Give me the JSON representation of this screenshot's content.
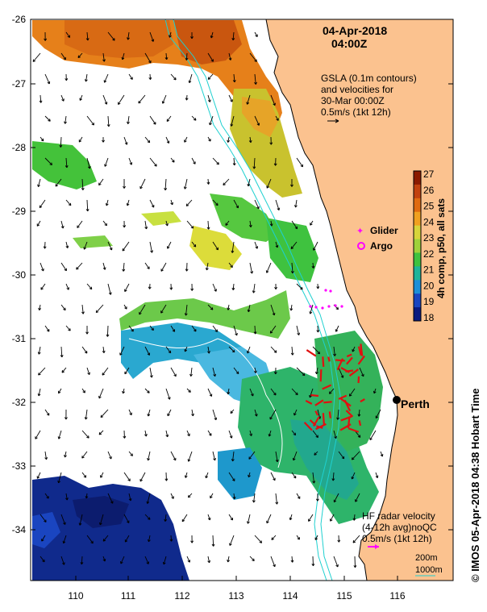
{
  "header": {
    "date": "04-Apr-2018",
    "time": "04:00Z"
  },
  "gsla": {
    "line1": "GSLA (0.1m contours)",
    "line2": "and velocities for",
    "line3": "30-Mar 00:00Z",
    "line4": "0.5m/s (1kt 12h)"
  },
  "legend": {
    "glider": "Glider",
    "argo": "Argo"
  },
  "colorbar": {
    "label": "4h comp, p50, all sats",
    "ticks": [
      "27",
      "26",
      "25",
      "24",
      "23",
      "22",
      "21",
      "20",
      "19",
      "18"
    ],
    "colors": [
      "#8b1a00",
      "#c2410e",
      "#e06a10",
      "#f0a020",
      "#d7d43a",
      "#9fd13a",
      "#3fc23f",
      "#20b49a",
      "#1d8fd8",
      "#1a45c0",
      "#0b1a80"
    ]
  },
  "place": {
    "perth": "Perth"
  },
  "hf": {
    "line1": "HF radar velocity",
    "line2": "(4-12h avg)noQC",
    "line3": "0.5m/s (1kt 12h)"
  },
  "depth": {
    "d200": "200m",
    "d1000": "1000m"
  },
  "credit": "© IMOS 05-Apr-2018 04:38 Hobart Time",
  "axes": {
    "lat_labels": [
      "-26",
      "-27",
      "-28",
      "-29",
      "-30",
      "-31",
      "-32",
      "-33",
      "-34"
    ],
    "lon_labels": [
      "110",
      "111",
      "112",
      "113",
      "114",
      "115",
      "116"
    ]
  },
  "colors": {
    "land": "#fbc28f",
    "contour_200": "#1fd0d0",
    "radar_arrow": "#e01010",
    "glider": "#ff00ff"
  }
}
